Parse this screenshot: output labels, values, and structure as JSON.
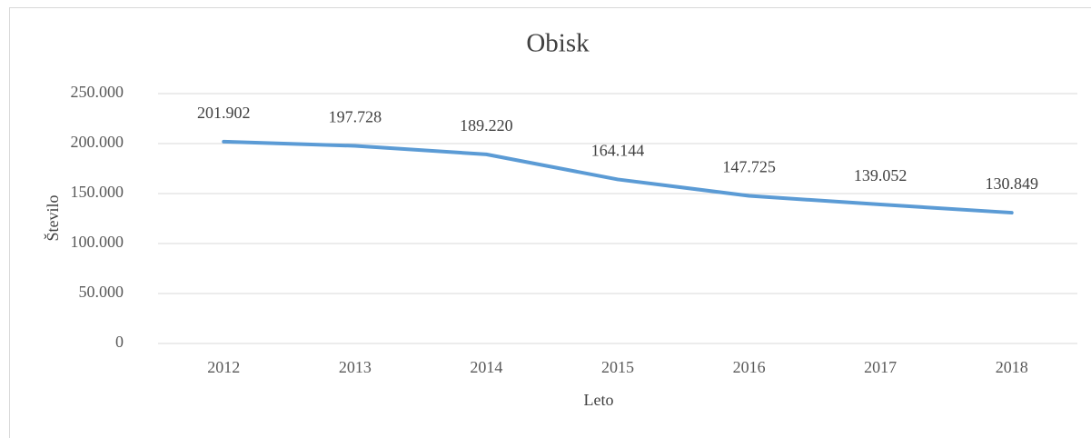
{
  "chart_data": {
    "type": "line",
    "title": "Obisk",
    "x_label": "Leto",
    "y_label": "Število",
    "categories": [
      "2012",
      "2013",
      "2014",
      "2015",
      "2016",
      "2017",
      "2018"
    ],
    "values": [
      201902,
      197728,
      189220,
      164144,
      147725,
      139052,
      130849
    ],
    "value_labels": [
      "201.902",
      "197.728",
      "189.220",
      "164.144",
      "147.725",
      "139.052",
      "130.849"
    ],
    "color": "#5b9bd5",
    "ylim": [
      0,
      250000
    ],
    "yticks": [
      0,
      {
        "value": 50000,
        "label": "50.000"
      },
      {
        "value": 100000,
        "label": "100.000"
      },
      {
        "value": 150000,
        "label": "150.000"
      },
      {
        "value": 200000,
        "label": "200.000"
      },
      {
        "value": 250000,
        "label": "250.000"
      }
    ],
    "grid": true
  }
}
